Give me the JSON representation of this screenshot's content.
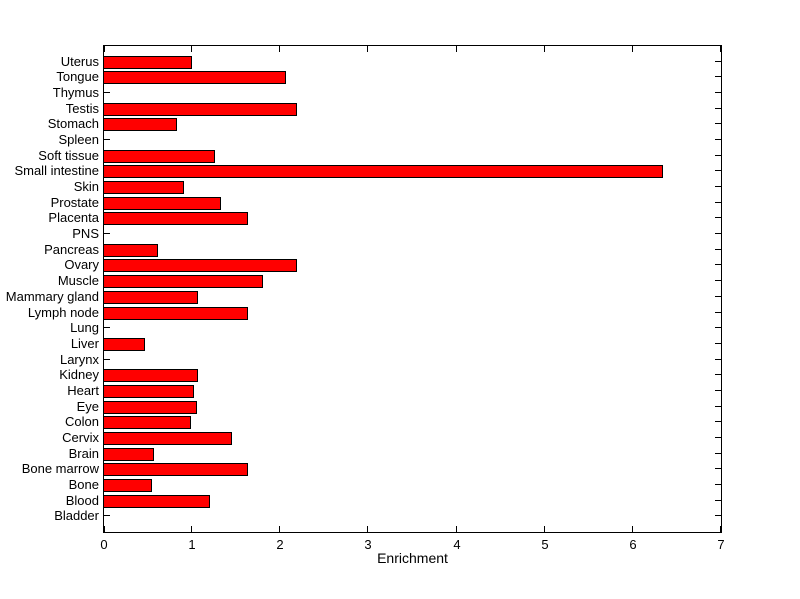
{
  "figure": {
    "background_color": "#FFFFFF",
    "axis_color": "#000000",
    "text_color": "#000000"
  },
  "chart_data": {
    "type": "bar",
    "orientation": "horizontal",
    "title": "",
    "xlabel": "Enrichment",
    "ylabel": "",
    "xlim": [
      0,
      7
    ],
    "x_ticks": [
      0,
      1,
      2,
      3,
      4,
      5,
      6,
      7
    ],
    "grid": false,
    "legend": false,
    "bar_fill_color": "#FF0000",
    "bar_edge_color": "#000000",
    "categories_top_to_bottom": [
      "Uterus",
      "Tongue",
      "Thymus",
      "Testis",
      "Stomach",
      "Spleen",
      "Soft tissue",
      "Small intestine",
      "Skin",
      "Prostate",
      "Placenta",
      "PNS",
      "Pancreas",
      "Ovary",
      "Muscle",
      "Mammary gland",
      "Lymph node",
      "Lung",
      "Liver",
      "Larynx",
      "Kidney",
      "Heart",
      "Eye",
      "Colon",
      "Cervix",
      "Brain",
      "Bone marrow",
      "Bone",
      "Blood",
      "Bladder"
    ],
    "values": [
      1.0,
      2.06,
      0,
      2.19,
      0.83,
      0,
      1.26,
      6.34,
      0.91,
      1.33,
      1.63,
      0,
      0.61,
      2.19,
      1.8,
      1.07,
      1.63,
      0,
      0.46,
      0,
      1.07,
      1.02,
      1.06,
      0.99,
      1.45,
      0.57,
      1.63,
      0.55,
      1.2,
      0
    ]
  }
}
